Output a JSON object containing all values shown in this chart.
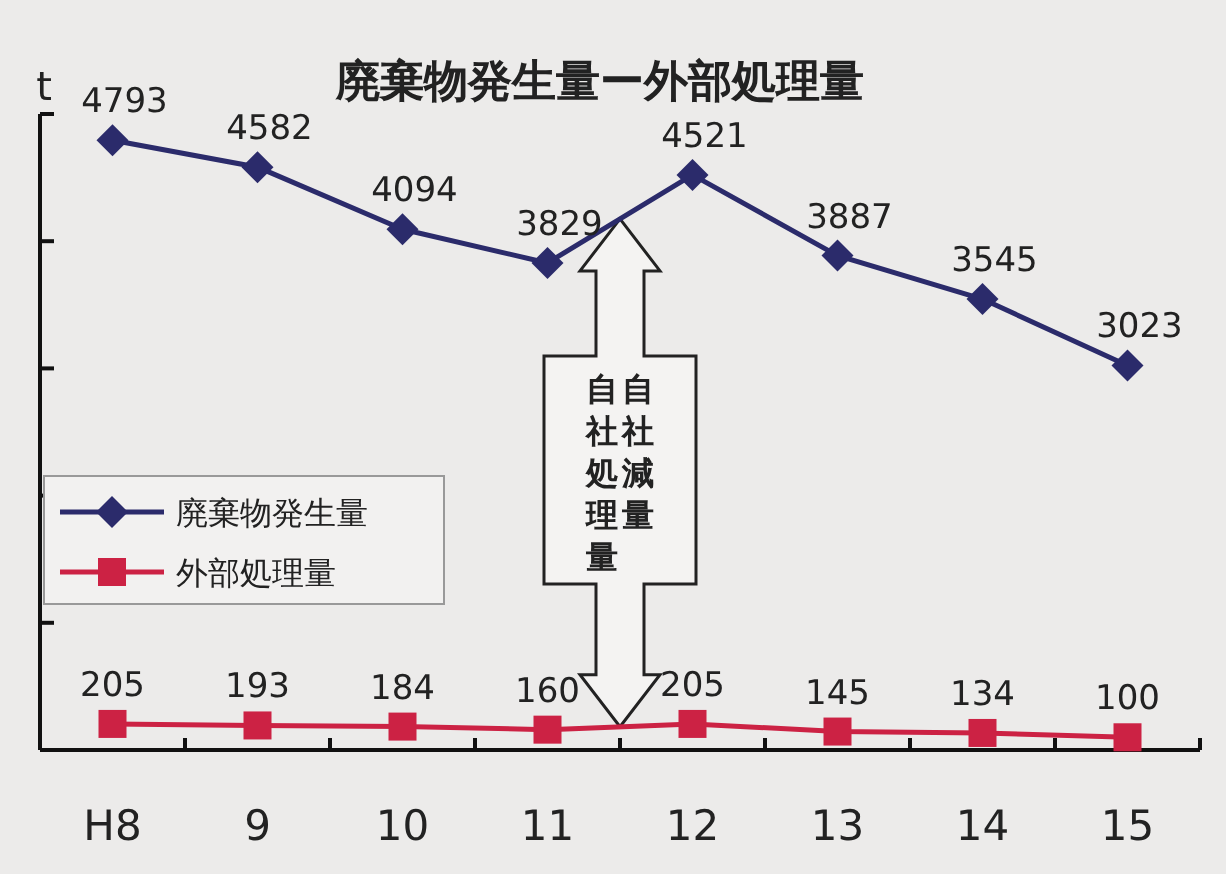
{
  "chart_data": {
    "type": "line",
    "title": "廃棄物発生量ー外部処理量",
    "ylabel": "t",
    "categories": [
      "H8",
      "9",
      "10",
      "11",
      "12",
      "13",
      "14",
      "15"
    ],
    "series": [
      {
        "name": "廃棄物発生量",
        "color": "#2b2b6b",
        "marker": "diamond",
        "values": [
          4793,
          4582,
          4094,
          3829,
          4521,
          3887,
          3545,
          3023
        ]
      },
      {
        "name": "外部処理量",
        "color": "#cc2244",
        "marker": "square",
        "values": [
          205,
          193,
          184,
          160,
          205,
          145,
          134,
          100
        ]
      }
    ],
    "ylim": [
      0,
      5000
    ],
    "yticks": [
      {
        "value": 0,
        "label": null
      },
      {
        "value": 1000,
        "label": null
      },
      {
        "value": 2000,
        "label": null
      },
      {
        "value": 3000,
        "label": null
      },
      {
        "value": 4000,
        "label": null
      },
      {
        "value": 5000,
        "label": null
      }
    ],
    "data_labels": true,
    "legend": "left",
    "grid": false,
    "annotations": [
      "自社減量",
      "自社処理量"
    ]
  }
}
